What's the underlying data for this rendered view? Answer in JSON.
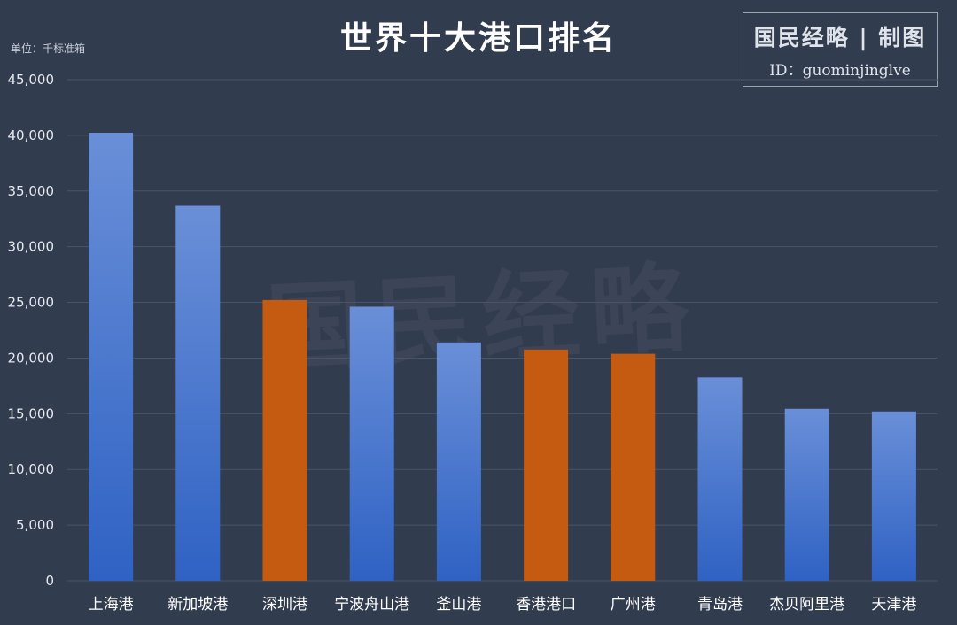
{
  "header": {
    "title": "世界十大港口排名",
    "unit": "单位：千标准箱"
  },
  "brand": {
    "line1": "国民经略 | 制图",
    "line2": "ID：guominjinglve",
    "watermark": "国民经略"
  },
  "colors": {
    "background": "#323c4f",
    "bar_blue_top": "#6a8fd8",
    "bar_blue_bottom": "#2f62c4",
    "bar_orange": "#c55a11",
    "grid": "#4a5466"
  },
  "chart_data": {
    "type": "bar",
    "title": "世界十大港口排名",
    "ylabel": "单位：千标准箱",
    "ylim": [
      0,
      45000
    ],
    "yticks": [
      0,
      5000,
      10000,
      15000,
      20000,
      25000,
      30000,
      35000,
      40000,
      45000
    ],
    "ytick_labels": [
      "0",
      "5,000",
      "10,000",
      "15,000",
      "20,000",
      "25,000",
      "30,000",
      "35,000",
      "40,000",
      "45,000"
    ],
    "grid": true,
    "categories": [
      "上海港",
      "新加坡港",
      "深圳港",
      "宁波舟山港",
      "釜山港",
      "香港港口",
      "广州港",
      "青岛港",
      "杰贝阿里港",
      "天津港"
    ],
    "values": [
      40230,
      33670,
      25210,
      24610,
      21400,
      20760,
      20380,
      18260,
      15440,
      15200
    ],
    "highlight": [
      false,
      false,
      true,
      false,
      false,
      true,
      true,
      false,
      false,
      false
    ]
  }
}
